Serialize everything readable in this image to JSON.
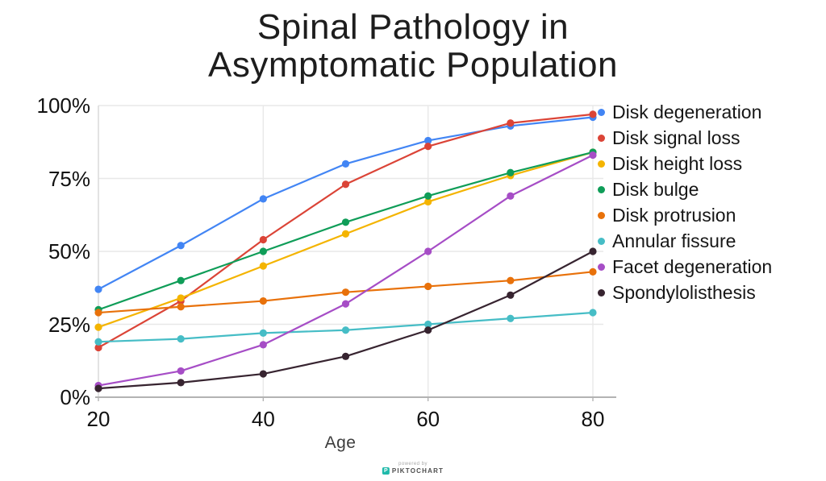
{
  "title": {
    "line1": "Spinal Pathology in",
    "line2": "Asymptomatic Population"
  },
  "chart_data": {
    "type": "line",
    "x": [
      20,
      30,
      40,
      50,
      60,
      70,
      80
    ],
    "xlabel": "Age",
    "ylabel": "",
    "xlim": [
      20,
      80
    ],
    "ylim": [
      0,
      100
    ],
    "xticks": [
      20,
      40,
      60,
      80
    ],
    "yticks": [
      0,
      25,
      50,
      75,
      100
    ],
    "ytick_labels": [
      "0%",
      "25%",
      "50%",
      "75%",
      "100%"
    ],
    "grid": true,
    "legend_position": "right",
    "series": [
      {
        "name": "Disk degeneration",
        "color": "#4285F4",
        "values": [
          37,
          52,
          68,
          80,
          88,
          93,
          96
        ]
      },
      {
        "name": "Disk signal loss",
        "color": "#DB4437",
        "values": [
          17,
          33,
          54,
          73,
          86,
          94,
          97
        ]
      },
      {
        "name": "Disk height loss",
        "color": "#F4B400",
        "values": [
          24,
          34,
          45,
          56,
          67,
          76,
          84
        ]
      },
      {
        "name": "Disk bulge",
        "color": "#0F9D58",
        "values": [
          30,
          40,
          50,
          60,
          69,
          77,
          84
        ]
      },
      {
        "name": "Disk protrusion",
        "color": "#E8710A",
        "values": [
          29,
          31,
          33,
          36,
          38,
          40,
          43
        ]
      },
      {
        "name": "Annular fissure",
        "color": "#46BDC6",
        "values": [
          19,
          20,
          22,
          23,
          25,
          27,
          29
        ]
      },
      {
        "name": "Facet degeneration",
        "color": "#A64DC6",
        "values": [
          4,
          9,
          18,
          32,
          50,
          69,
          83
        ]
      },
      {
        "name": "Spondylolisthesis",
        "color": "#372430",
        "values": [
          3,
          5,
          8,
          14,
          23,
          35,
          50
        ]
      }
    ],
    "grid_color": "#e8e8e8",
    "axis_line_color": "#b3b3b3",
    "y_axis_line_color": "#dcdcdc"
  },
  "watermark": {
    "powered_by": "powered by",
    "brand": "PIKTOCHART",
    "logo_letter": "P",
    "accent_color": "#1fb9aa"
  }
}
